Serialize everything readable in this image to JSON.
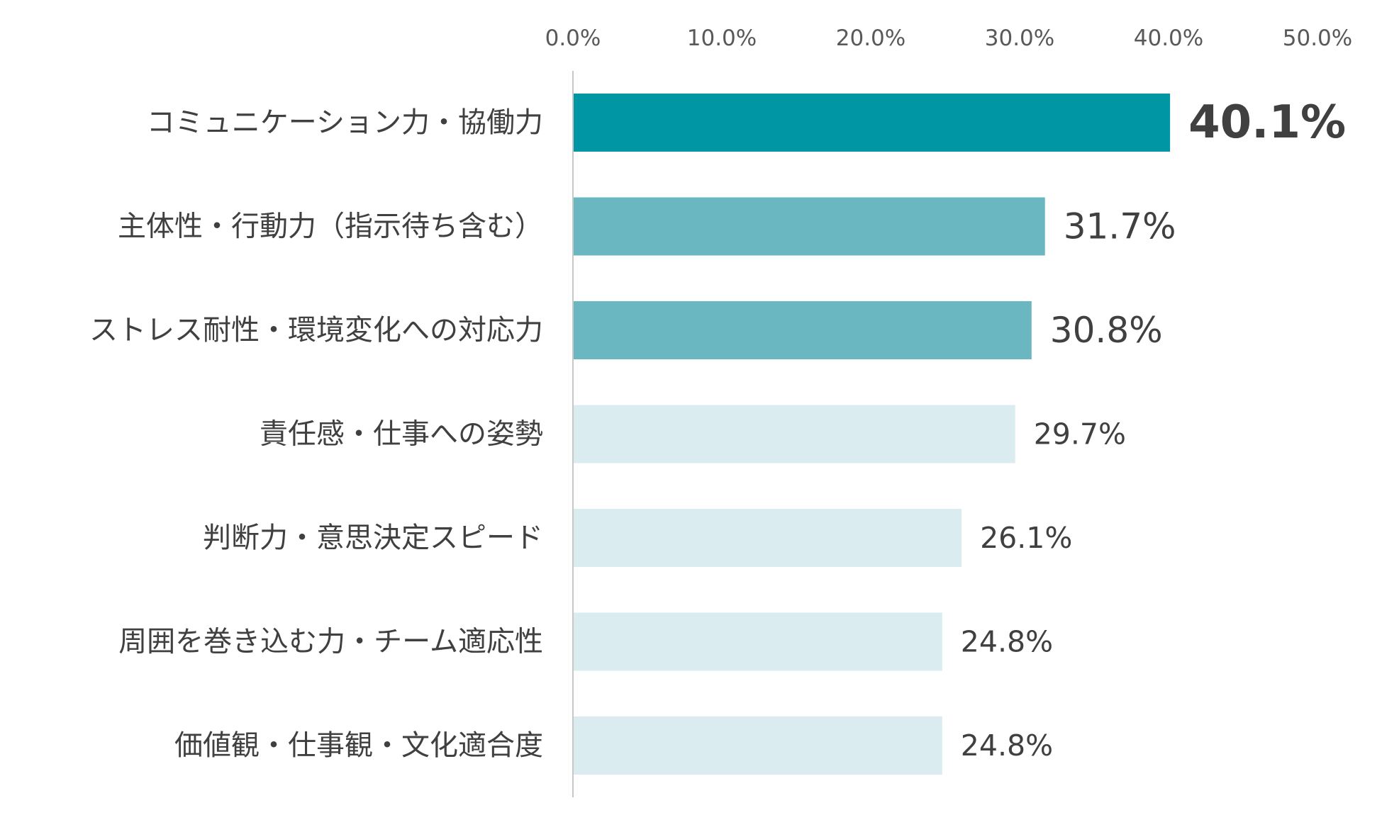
{
  "chart_data": {
    "type": "bar",
    "orientation": "horizontal",
    "title": "",
    "xlabel": "",
    "ylabel": "",
    "xlim": [
      0,
      50
    ],
    "grid": false,
    "legend": "none",
    "x_ticks": [
      0,
      10,
      20,
      30,
      40,
      50
    ],
    "x_tick_labels": [
      "0.0%",
      "10.0%",
      "20.0%",
      "30.0%",
      "40.0%",
      "50.0%"
    ],
    "categories": [
      "コミュニケーション力・協働力",
      "主体性・行動力（指示待ち含む）",
      "ストレス耐性・環境変化への対応力",
      "責任感・仕事への姿勢",
      "判断力・意思決定スピード",
      "周囲を巻き込む力・チーム適応性",
      "価値観・仕事観・文化適合度"
    ],
    "values": [
      40.1,
      31.7,
      30.8,
      29.7,
      26.1,
      24.8,
      24.8
    ],
    "value_labels": [
      "40.1%",
      "31.7%",
      "30.8%",
      "29.7%",
      "26.1%",
      "24.8%",
      "24.8%"
    ],
    "bar_colors": [
      "#0096a3",
      "#6ab7c1",
      "#6ab7c1",
      "#daecef",
      "#daecef",
      "#daecef",
      "#daecef"
    ],
    "highlight_index": 0
  },
  "colors": {
    "axis_line": "#c8c8c8",
    "tick_text": "#595959",
    "category_text": "#404040",
    "value_text": "#404040"
  }
}
